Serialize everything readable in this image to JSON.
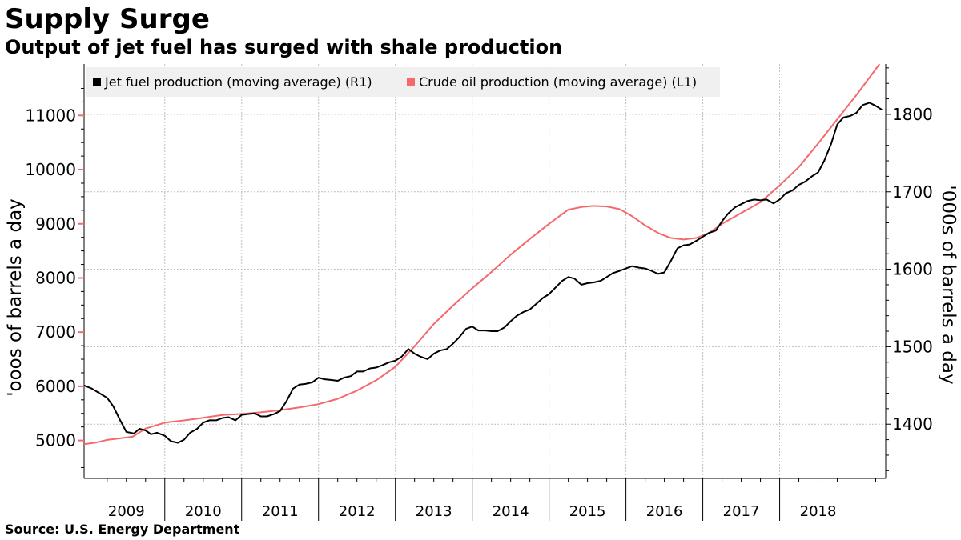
{
  "title": "Supply Surge",
  "subtitle": "Output of jet fuel has surged with shale production",
  "source": "Source: U.S. Energy Department",
  "colors": {
    "jet": "#000000",
    "crude": "#f4696b",
    "grid": "#bdbdbd",
    "legend_bg": "#f0f0f0"
  },
  "chart_data": {
    "type": "line",
    "x_axis": {
      "kind": "year",
      "labels": [
        "2009",
        "2010",
        "2011",
        "2012",
        "2013",
        "2014",
        "2015",
        "2016",
        "2017",
        "2018"
      ],
      "range": [
        2008.95,
        2019.38
      ]
    },
    "left_axis": {
      "label": "'ooos of barrels a day",
      "ticks": [
        5000,
        6000,
        7000,
        8000,
        9000,
        10000,
        11000
      ],
      "range": [
        4300,
        11950
      ]
    },
    "right_axis": {
      "label": "'000s of barrels a day",
      "ticks": [
        1400,
        1500,
        1600,
        1700,
        1800
      ],
      "range": [
        1330,
        1865
      ]
    },
    "legend": {
      "placement": "top-left"
    },
    "grid": true,
    "series": [
      {
        "name": "Jet fuel production (moving average) (R1)",
        "axis": "right",
        "color": "#000000",
        "points": [
          [
            2008.95,
            1450
          ],
          [
            2009.05,
            1446
          ],
          [
            2009.15,
            1440
          ],
          [
            2009.25,
            1434
          ],
          [
            2009.33,
            1423
          ],
          [
            2009.42,
            1405
          ],
          [
            2009.5,
            1390
          ],
          [
            2009.6,
            1388
          ],
          [
            2009.67,
            1394
          ],
          [
            2009.75,
            1392
          ],
          [
            2009.82,
            1387
          ],
          [
            2009.9,
            1389
          ],
          [
            2010.0,
            1385
          ],
          [
            2010.08,
            1378
          ],
          [
            2010.17,
            1376
          ],
          [
            2010.25,
            1380
          ],
          [
            2010.33,
            1389
          ],
          [
            2010.42,
            1394
          ],
          [
            2010.5,
            1402
          ],
          [
            2010.58,
            1405
          ],
          [
            2010.67,
            1405
          ],
          [
            2010.75,
            1408
          ],
          [
            2010.83,
            1409
          ],
          [
            2010.92,
            1405
          ],
          [
            2011.0,
            1412
          ],
          [
            2011.08,
            1413
          ],
          [
            2011.17,
            1414
          ],
          [
            2011.25,
            1410
          ],
          [
            2011.33,
            1410
          ],
          [
            2011.42,
            1413
          ],
          [
            2011.5,
            1417
          ],
          [
            2011.58,
            1429
          ],
          [
            2011.67,
            1446
          ],
          [
            2011.75,
            1451
          ],
          [
            2011.83,
            1452
          ],
          [
            2011.92,
            1454
          ],
          [
            2012.0,
            1460
          ],
          [
            2012.08,
            1458
          ],
          [
            2012.17,
            1457
          ],
          [
            2012.25,
            1456
          ],
          [
            2012.33,
            1460
          ],
          [
            2012.42,
            1462
          ],
          [
            2012.5,
            1468
          ],
          [
            2012.58,
            1468
          ],
          [
            2012.67,
            1472
          ],
          [
            2012.75,
            1473
          ],
          [
            2012.83,
            1476
          ],
          [
            2012.92,
            1480
          ],
          [
            2013.0,
            1482
          ],
          [
            2013.08,
            1487
          ],
          [
            2013.17,
            1497
          ],
          [
            2013.25,
            1491
          ],
          [
            2013.33,
            1487
          ],
          [
            2013.42,
            1484
          ],
          [
            2013.5,
            1491
          ],
          [
            2013.58,
            1495
          ],
          [
            2013.67,
            1497
          ],
          [
            2013.75,
            1504
          ],
          [
            2013.83,
            1512
          ],
          [
            2013.92,
            1523
          ],
          [
            2014.0,
            1526
          ],
          [
            2014.08,
            1521
          ],
          [
            2014.17,
            1521
          ],
          [
            2014.25,
            1520
          ],
          [
            2014.33,
            1520
          ],
          [
            2014.42,
            1525
          ],
          [
            2014.5,
            1533
          ],
          [
            2014.58,
            1540
          ],
          [
            2014.67,
            1545
          ],
          [
            2014.75,
            1548
          ],
          [
            2014.83,
            1555
          ],
          [
            2014.92,
            1563
          ],
          [
            2015.0,
            1568
          ],
          [
            2015.08,
            1576
          ],
          [
            2015.17,
            1585
          ],
          [
            2015.25,
            1590
          ],
          [
            2015.33,
            1588
          ],
          [
            2015.42,
            1580
          ],
          [
            2015.5,
            1582
          ],
          [
            2015.58,
            1583
          ],
          [
            2015.67,
            1585
          ],
          [
            2015.75,
            1590
          ],
          [
            2015.83,
            1595
          ],
          [
            2015.92,
            1598
          ],
          [
            2016.0,
            1601
          ],
          [
            2016.08,
            1604
          ],
          [
            2016.17,
            1602
          ],
          [
            2016.25,
            1601
          ],
          [
            2016.33,
            1598
          ],
          [
            2016.42,
            1594
          ],
          [
            2016.5,
            1596
          ],
          [
            2016.58,
            1610
          ],
          [
            2016.67,
            1627
          ],
          [
            2016.75,
            1631
          ],
          [
            2016.83,
            1632
          ],
          [
            2016.92,
            1637
          ],
          [
            2017.0,
            1642
          ],
          [
            2017.08,
            1647
          ],
          [
            2017.17,
            1650
          ],
          [
            2017.25,
            1662
          ],
          [
            2017.33,
            1672
          ],
          [
            2017.42,
            1680
          ],
          [
            2017.5,
            1684
          ],
          [
            2017.58,
            1688
          ],
          [
            2017.67,
            1690
          ],
          [
            2017.75,
            1689
          ],
          [
            2017.83,
            1690
          ],
          [
            2017.92,
            1685
          ],
          [
            2018.0,
            1690
          ],
          [
            2018.08,
            1698
          ],
          [
            2018.17,
            1702
          ],
          [
            2018.25,
            1709
          ],
          [
            2018.33,
            1713
          ],
          [
            2018.42,
            1720
          ],
          [
            2018.5,
            1725
          ],
          [
            2018.58,
            1740
          ],
          [
            2018.67,
            1762
          ],
          [
            2018.75,
            1787
          ],
          [
            2018.83,
            1796
          ],
          [
            2018.92,
            1798
          ],
          [
            2019.0,
            1802
          ],
          [
            2019.08,
            1812
          ],
          [
            2019.17,
            1815
          ],
          [
            2019.25,
            1811
          ],
          [
            2019.33,
            1806
          ]
        ]
      },
      {
        "name": "Crude oil production (moving average) (L1)",
        "axis": "left",
        "color": "#f4696b",
        "points": [
          [
            2008.95,
            4930
          ],
          [
            2009.1,
            4960
          ],
          [
            2009.25,
            5010
          ],
          [
            2009.42,
            5040
          ],
          [
            2009.58,
            5070
          ],
          [
            2009.75,
            5220
          ],
          [
            2010.0,
            5330
          ],
          [
            2010.25,
            5370
          ],
          [
            2010.5,
            5420
          ],
          [
            2010.75,
            5470
          ],
          [
            2011.0,
            5490
          ],
          [
            2011.25,
            5520
          ],
          [
            2011.5,
            5560
          ],
          [
            2011.75,
            5610
          ],
          [
            2012.0,
            5670
          ],
          [
            2012.25,
            5770
          ],
          [
            2012.5,
            5920
          ],
          [
            2012.75,
            6110
          ],
          [
            2013.0,
            6360
          ],
          [
            2013.25,
            6740
          ],
          [
            2013.5,
            7150
          ],
          [
            2013.75,
            7490
          ],
          [
            2014.0,
            7810
          ],
          [
            2014.25,
            8110
          ],
          [
            2014.5,
            8430
          ],
          [
            2014.75,
            8720
          ],
          [
            2015.0,
            9000
          ],
          [
            2015.25,
            9260
          ],
          [
            2015.42,
            9310
          ],
          [
            2015.58,
            9330
          ],
          [
            2015.75,
            9320
          ],
          [
            2015.92,
            9270
          ],
          [
            2016.08,
            9140
          ],
          [
            2016.25,
            8970
          ],
          [
            2016.42,
            8830
          ],
          [
            2016.58,
            8740
          ],
          [
            2016.75,
            8710
          ],
          [
            2016.92,
            8740
          ],
          [
            2017.08,
            8830
          ],
          [
            2017.25,
            9000
          ],
          [
            2017.5,
            9200
          ],
          [
            2017.75,
            9400
          ],
          [
            2018.0,
            9710
          ],
          [
            2018.25,
            10050
          ],
          [
            2018.5,
            10480
          ],
          [
            2018.75,
            10930
          ],
          [
            2019.0,
            11380
          ],
          [
            2019.17,
            11700
          ],
          [
            2019.3,
            11950
          ]
        ]
      }
    ]
  }
}
